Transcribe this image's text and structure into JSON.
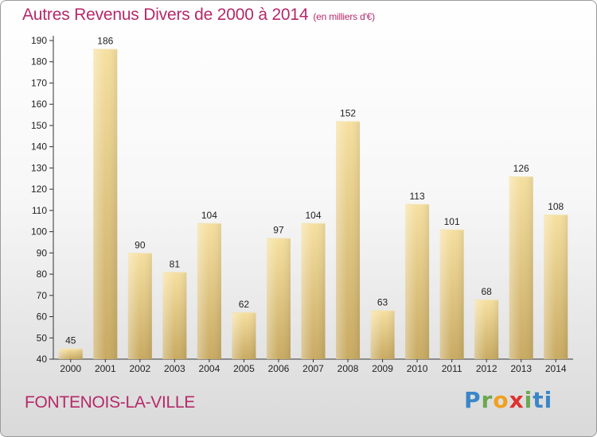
{
  "header": {
    "title": "Autres Revenus Divers de 2000 à 2014",
    "unit": "(en milliers d'€)"
  },
  "footer": {
    "place": "FONTENOIS-LA-VILLE",
    "logo": "Proxiti"
  },
  "colors": {
    "title": "#b5296a",
    "bar_light": "#f6e0a0",
    "bar_dark": "#c8aa62",
    "axis": "#333333"
  },
  "chart_data": {
    "type": "bar",
    "categories": [
      "2000",
      "2001",
      "2002",
      "2003",
      "2004",
      "2005",
      "2006",
      "2007",
      "2008",
      "2009",
      "2010",
      "2011",
      "2012",
      "2013",
      "2014"
    ],
    "values": [
      45,
      186,
      90,
      81,
      104,
      62,
      97,
      104,
      152,
      63,
      113,
      101,
      68,
      126,
      108
    ],
    "ylim": [
      40,
      190
    ],
    "yticks": [
      40,
      50,
      60,
      70,
      80,
      90,
      100,
      110,
      120,
      130,
      140,
      150,
      160,
      170,
      180,
      190
    ],
    "grid": false,
    "data_labels": true
  }
}
